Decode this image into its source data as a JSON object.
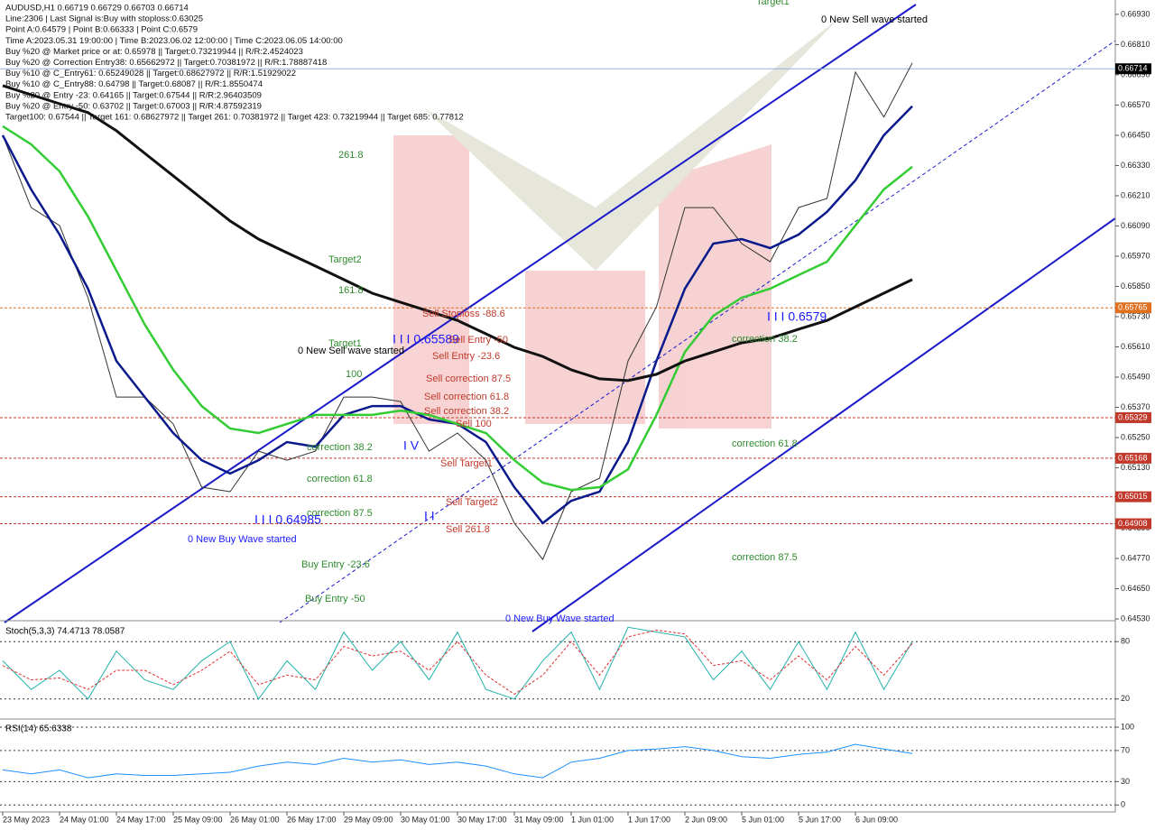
{
  "chart_data": [
    {
      "type": "line",
      "info_lines": [
        "AUDUSD,H1  0.66719 0.66729 0.66703 0.66714",
        "Line:2306 | Last Signal is:Buy with stoploss:0.63025",
        "Point A:0.64579 | Point B:0.66333 | Point C:0.6579",
        "Time A:2023.05.31 19:00:00 | Time B:2023.06.02 12:00:00 | Time C:2023.06.05 14:00:00",
        "Buy %20 @ Market price or at: 0.65978 || Target:0.73219944 || R/R:2.4524023",
        "Buy %20 @ Correction Entry38: 0.65662972 || Target:0.70381972 || R/R:1.78887418",
        "Buy %10 @ C_Entry61: 0.65249028 || Target:0.68627972 || R/R:1.51929022",
        "Buy %10 @ C_Entry88: 0.64798 || Target:0.68087 || R/R:1.8550474",
        "Buy %20 @ Entry -23: 0.64165 || Target:0.67544 || R/R:2.96403509",
        "Buy %20 @ Entry -50: 0.63702 || Target:0.67003 || R/R:4.87592319",
        "Target100: 0.67544 || Target 161: 0.68627972 || Target 261: 0.70381972 || Target 423: 0.73219944 || Target 685: 0.77812"
      ],
      "categories": [
        "23 May 2023",
        null,
        "24 May 01:00",
        null,
        "24 May 17:00",
        null,
        "25 May 09:00",
        null,
        "26 May 01:00",
        null,
        "26 May 17:00",
        null,
        "29 May 09:00",
        null,
        "30 May 01:00",
        null,
        "30 May 17:00",
        null,
        "31 May 09:00",
        null,
        "1 Jun 01:00",
        null,
        "1 Jun 17:00",
        null,
        "2 Jun 09:00",
        null,
        "5 Jun 01:00",
        null,
        "5 Jun 17:00",
        null,
        "6 Jun 09:00",
        null,
        null
      ],
      "series": [
        {
          "color": "#333333",
          "width": 1,
          "values": [
            0.6645,
            0.66163,
            0.66092,
            0.65805,
            0.65411,
            0.65411,
            0.65304,
            0.65053,
            0.65035,
            0.65196,
            0.6516,
            0.65196,
            0.65411,
            0.65411,
            0.65393,
            0.65196,
            0.65268,
            0.6516,
            0.6491,
            0.64766,
            0.65035,
            0.65089,
            0.65554,
            0.65769,
            0.66163,
            0.66163,
            0.6602,
            0.65948,
            0.66163,
            0.66199,
            0.66701,
            0.66522,
            0.66737
          ]
        },
        {
          "color": "#0a1a8c",
          "width": 2.5,
          "values": [
            0.6645,
            0.66235,
            0.66056,
            0.65841,
            0.65554,
            0.65411,
            0.65268,
            0.6516,
            0.65107,
            0.6516,
            0.65232,
            0.65214,
            0.6534,
            0.65375,
            0.65375,
            0.65322,
            0.65304,
            0.65232,
            0.65053,
            0.6491,
            0.64999,
            0.65035,
            0.65232,
            0.65554,
            0.65841,
            0.6602,
            0.66038,
            0.66002,
            0.66056,
            0.66146,
            0.66271,
            0.6645,
            0.66565
          ]
        },
        {
          "color": "#33cc33",
          "width": 2.5,
          "values": [
            0.66486,
            0.66414,
            0.66307,
            0.66128,
            0.65913,
            0.65698,
            0.65519,
            0.65375,
            0.65286,
            0.65268,
            0.65304,
            0.6534,
            0.6534,
            0.6534,
            0.65357,
            0.6534,
            0.65304,
            0.65268,
            0.6516,
            0.65071,
            0.65042,
            0.65053,
            0.65124,
            0.6534,
            0.6559,
            0.65733,
            0.65805,
            0.65841,
            0.65895,
            0.65948,
            0.66092,
            0.66235,
            0.66325
          ]
        },
        {
          "color": "#111111",
          "width": 3,
          "values": [
            0.66647,
            0.66611,
            0.66575,
            0.6654,
            0.66468,
            0.66378,
            0.66289,
            0.66199,
            0.6611,
            0.66038,
            0.65984,
            0.65931,
            0.65877,
            0.65823,
            0.65787,
            0.65751,
            0.65715,
            0.65662,
            0.65608,
            0.65572,
            0.65519,
            0.65483,
            0.65476,
            0.65501,
            0.65554,
            0.6559,
            0.65626,
            0.65644,
            0.6568,
            0.65715,
            0.65769,
            0.65823,
            0.65877
          ]
        }
      ],
      "ylim": [
        0.64523,
        0.66987
      ],
      "yticks": [
        {
          "value": 0.6693,
          "label": "0.66930"
        },
        {
          "value": 0.6681,
          "label": "0.66810"
        },
        {
          "value": 0.6669,
          "label": "0.66690"
        },
        {
          "value": 0.6657,
          "label": "0.66570"
        },
        {
          "value": 0.6645,
          "label": "0.66450"
        },
        {
          "value": 0.6633,
          "label": "0.66330"
        },
        {
          "value": 0.6621,
          "label": "0.66210"
        },
        {
          "value": 0.6609,
          "label": "0.66090"
        },
        {
          "value": 0.6597,
          "label": "0.65970"
        },
        {
          "value": 0.6585,
          "label": "0.65850"
        },
        {
          "value": 0.6573,
          "label": "0.65730"
        },
        {
          "value": 0.6561,
          "label": "0.65610"
        },
        {
          "value": 0.6549,
          "label": "0.65490"
        },
        {
          "value": 0.6537,
          "label": "0.65370"
        },
        {
          "value": 0.6525,
          "label": "0.65250"
        },
        {
          "value": 0.6513,
          "label": "0.65130"
        },
        {
          "value": 0.6501,
          "label": "0.65010"
        },
        {
          "value": 0.6489,
          "label": "0.64890"
        },
        {
          "value": 0.6477,
          "label": "0.64770"
        },
        {
          "value": 0.6465,
          "label": "0.64650"
        },
        {
          "value": 0.6453,
          "label": "0.64530"
        }
      ],
      "grid": false,
      "levels": [
        0.65765,
        0.65329,
        0.65168,
        0.65015,
        0.64908
      ],
      "level_colors": [
        "#e07020",
        "#c0392b",
        "#c0392b",
        "#c0392b",
        "#c0392b"
      ],
      "current_price": 0.66714,
      "annotations": [
        {
          "text": "Target1",
          "color": "#2e8b2e"
        },
        {
          "text": "0 New Sell wave started",
          "color": "#000000"
        },
        {
          "text": "261.8",
          "color": "#2e8b2e"
        },
        {
          "text": "Target2",
          "color": "#2e8b2e"
        },
        {
          "text": "161.8",
          "color": "#2e8b2e"
        },
        {
          "text": "Sell Stoploss -88.6",
          "color": "#c0392b"
        },
        {
          "text": "I I I 0.65589",
          "color": "#1a1aff"
        },
        {
          "text": "Sell Entry -50",
          "color": "#c0392b"
        },
        {
          "text": "Target1",
          "color": "#2e8b2e"
        },
        {
          "text": "0 New Sell wave started",
          "color": "#000000"
        },
        {
          "text": "Sell Entry -23.6",
          "color": "#c0392b"
        },
        {
          "text": "100",
          "color": "#2e8b2e"
        },
        {
          "text": "Sell correction 87.5",
          "color": "#c0392b"
        },
        {
          "text": "Sell correction 61.8",
          "color": "#c0392b"
        },
        {
          "text": "Sell correction 38.2",
          "color": "#c0392b"
        },
        {
          "text": "Sell 100",
          "color": "#c0392b"
        },
        {
          "text": "correction 38.2",
          "color": "#2e8b2e"
        },
        {
          "text": "I V",
          "color": "#1a1aff"
        },
        {
          "text": "Sell Target1",
          "color": "#c0392b"
        },
        {
          "text": "correction 61.8",
          "color": "#2e8b2e"
        },
        {
          "text": "Sell Target2",
          "color": "#c0392b"
        },
        {
          "text": "I I",
          "color": "#1a1aff"
        },
        {
          "text": "correction 87.5",
          "color": "#2e8b2e"
        },
        {
          "text": "I I I 0.64985",
          "color": "#1a1aff"
        },
        {
          "text": "Sell 261.8",
          "color": "#c0392b"
        },
        {
          "text": "0 New Buy Wave started",
          "color": "#1a1aff"
        },
        {
          "text": "Buy Entry -23.6",
          "color": "#2e8b2e"
        },
        {
          "text": "Buy Entry -50",
          "color": "#2e8b2e"
        },
        {
          "text": "0 New Buy Wave started",
          "color": "#1a1aff"
        },
        {
          "text": "I I I 0.6579",
          "color": "#1a1aff"
        },
        {
          "text": "correction 38.2",
          "color": "#2e8b2e"
        },
        {
          "text": "correction 61.8",
          "color": "#2e8b2e"
        },
        {
          "text": "correction 87.5",
          "color": "#2e8b2e"
        }
      ]
    },
    {
      "type": "line",
      "title": "Stoch(5,3,3) 74.4713 78.0587",
      "series": [
        {
          "color": "#20b2aa",
          "width": 1,
          "values": [
            60,
            30,
            50,
            20,
            70,
            40,
            30,
            60,
            80,
            20,
            60,
            30,
            90,
            50,
            80,
            40,
            90,
            30,
            20,
            60,
            90,
            30,
            95,
            90,
            85,
            40,
            70,
            30,
            80,
            30,
            90,
            30,
            80
          ]
        },
        {
          "color": "#e03030",
          "width": 1,
          "dash": true,
          "values": [
            55,
            40,
            42,
            30,
            50,
            50,
            35,
            50,
            70,
            35,
            45,
            40,
            75,
            65,
            70,
            50,
            80,
            45,
            25,
            45,
            80,
            45,
            85,
            92,
            88,
            55,
            60,
            40,
            65,
            40,
            75,
            45,
            78
          ]
        }
      ],
      "ylim": [
        0,
        100
      ],
      "yticks": [
        80,
        20
      ],
      "grid": true
    },
    {
      "type": "line",
      "title": "RSI(14) 65.6338",
      "series": [
        {
          "color": "#1e90ff",
          "width": 1,
          "values": [
            45,
            40,
            45,
            35,
            40,
            38,
            38,
            40,
            42,
            50,
            55,
            52,
            60,
            55,
            58,
            52,
            55,
            50,
            40,
            35,
            55,
            60,
            70,
            72,
            75,
            70,
            62,
            60,
            65,
            68,
            78,
            72,
            66
          ]
        }
      ],
      "ylim": [
        -9,
        107
      ],
      "yticks": [
        100,
        70,
        30,
        0
      ],
      "grid": true
    }
  ]
}
